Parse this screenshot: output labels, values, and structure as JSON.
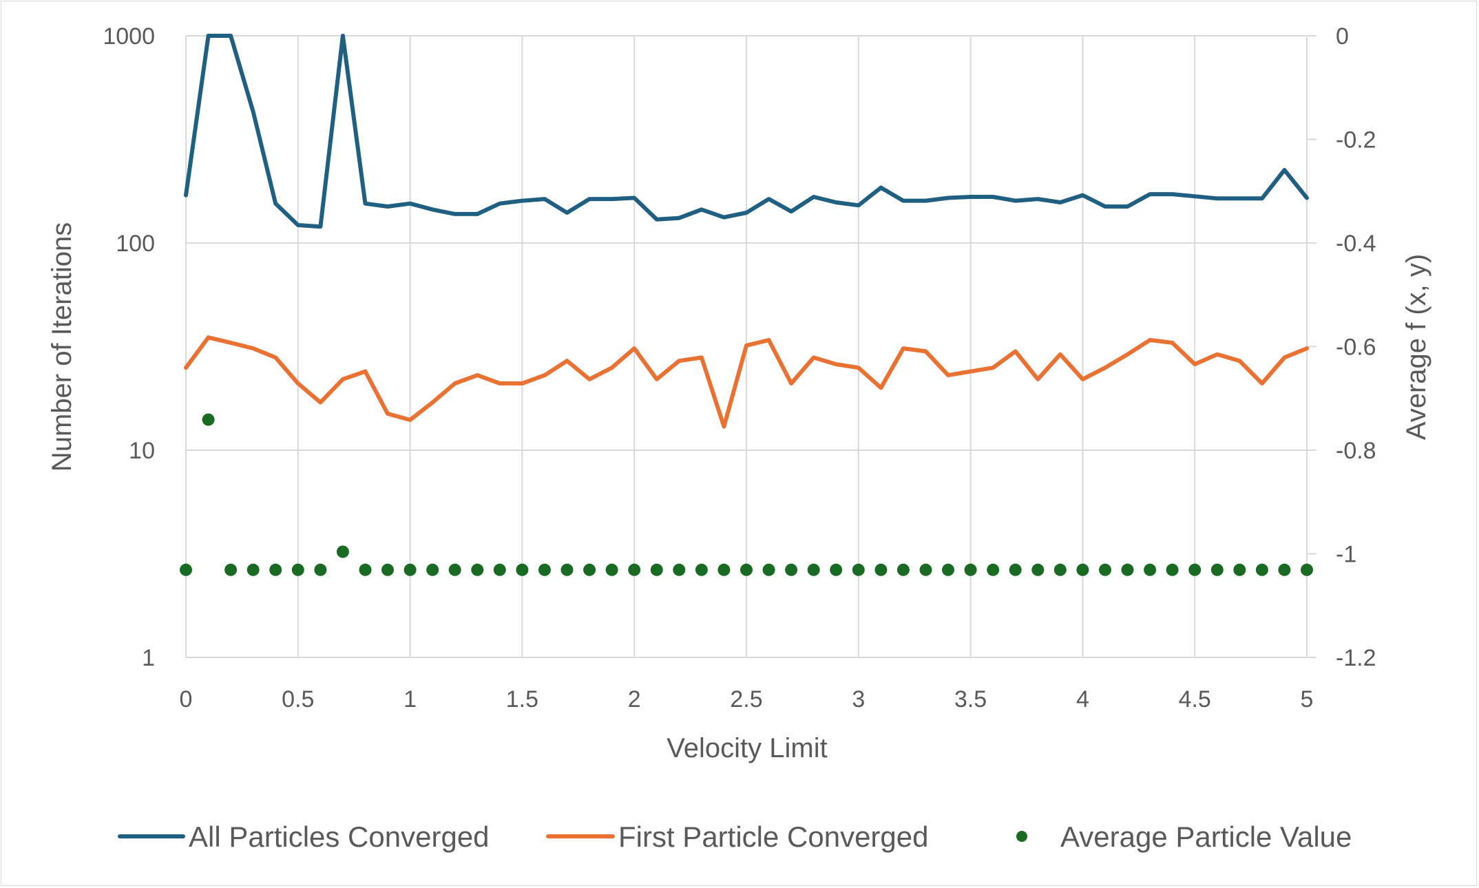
{
  "chart_data": {
    "type": "line",
    "xlabel": "Velocity Limit",
    "ylabel": "Number of Iterations",
    "y2label": "Average f (x, y)",
    "xlim": [
      0,
      5
    ],
    "ylim": [
      1,
      1000
    ],
    "yscale": "log",
    "y2lim": [
      -1.2,
      0
    ],
    "grid": true,
    "legend_position": "bottom",
    "x_ticks": [
      "0",
      "0.5",
      "1",
      "1.5",
      "2",
      "2.5",
      "3",
      "3.5",
      "4",
      "4.5",
      "5"
    ],
    "y_ticks": [
      "1",
      "10",
      "100",
      "1000"
    ],
    "y2_ticks": [
      "0",
      "-0.2",
      "-0.4",
      "-0.6",
      "-0.8",
      "-1",
      "-1.2"
    ],
    "x": [
      0,
      0.1,
      0.2,
      0.3,
      0.4,
      0.5,
      0.6,
      0.7,
      0.8,
      0.9,
      1.0,
      1.1,
      1.2,
      1.3,
      1.4,
      1.5,
      1.6,
      1.7,
      1.8,
      1.9,
      2.0,
      2.1,
      2.2,
      2.3,
      2.4,
      2.5,
      2.6,
      2.7,
      2.8,
      2.9,
      3.0,
      3.1,
      3.2,
      3.3,
      3.4,
      3.5,
      3.6,
      3.7,
      3.8,
      3.9,
      4.0,
      4.1,
      4.2,
      4.3,
      4.4,
      4.5,
      4.6,
      4.7,
      4.8,
      4.9,
      5.0
    ],
    "series": [
      {
        "name": "All Particles Converged",
        "axis": "left",
        "style": "line",
        "color": "#1f5f82",
        "values": [
          170,
          1000,
          1000,
          430,
          155,
          122,
          120,
          1000,
          155,
          150,
          155,
          145,
          138,
          138,
          155,
          160,
          163,
          140,
          163,
          163,
          165,
          130,
          132,
          145,
          133,
          140,
          163,
          142,
          167,
          157,
          152,
          185,
          160,
          160,
          165,
          167,
          167,
          160,
          163,
          157,
          170,
          150,
          150,
          172,
          172,
          168,
          164,
          164,
          164,
          225,
          165
        ]
      },
      {
        "name": "First Particle Converged",
        "axis": "left",
        "style": "line",
        "color": "#e97132",
        "values": [
          25,
          35,
          33,
          31,
          28,
          21,
          17,
          22,
          24,
          15,
          14,
          17,
          21,
          23,
          21,
          21,
          23,
          27,
          22,
          25,
          31,
          22,
          27,
          28,
          13,
          32,
          34,
          21,
          28,
          26,
          25,
          20,
          31,
          30,
          23,
          24,
          25,
          30,
          22,
          29,
          22,
          25,
          29,
          34,
          33,
          26,
          29,
          27,
          21,
          28,
          31
        ]
      },
      {
        "name": "Average Particle Value",
        "axis": "right",
        "style": "markers",
        "color": "#196b24",
        "values": [
          -1.031,
          -0.741,
          -1.031,
          -1.031,
          -1.031,
          -1.031,
          -1.031,
          -0.996,
          -1.031,
          -1.031,
          -1.031,
          -1.031,
          -1.031,
          -1.031,
          -1.031,
          -1.031,
          -1.031,
          -1.031,
          -1.031,
          -1.031,
          -1.031,
          -1.031,
          -1.031,
          -1.031,
          -1.031,
          -1.031,
          -1.031,
          -1.031,
          -1.031,
          -1.031,
          -1.031,
          -1.031,
          -1.031,
          -1.031,
          -1.031,
          -1.031,
          -1.031,
          -1.031,
          -1.031,
          -1.031,
          -1.031,
          -1.031,
          -1.031,
          -1.031,
          -1.031,
          -1.031,
          -1.031,
          -1.031,
          -1.031,
          -1.031,
          -1.031
        ]
      }
    ]
  },
  "colors": {
    "grid": "#d9d9d9",
    "text": "#595959"
  }
}
